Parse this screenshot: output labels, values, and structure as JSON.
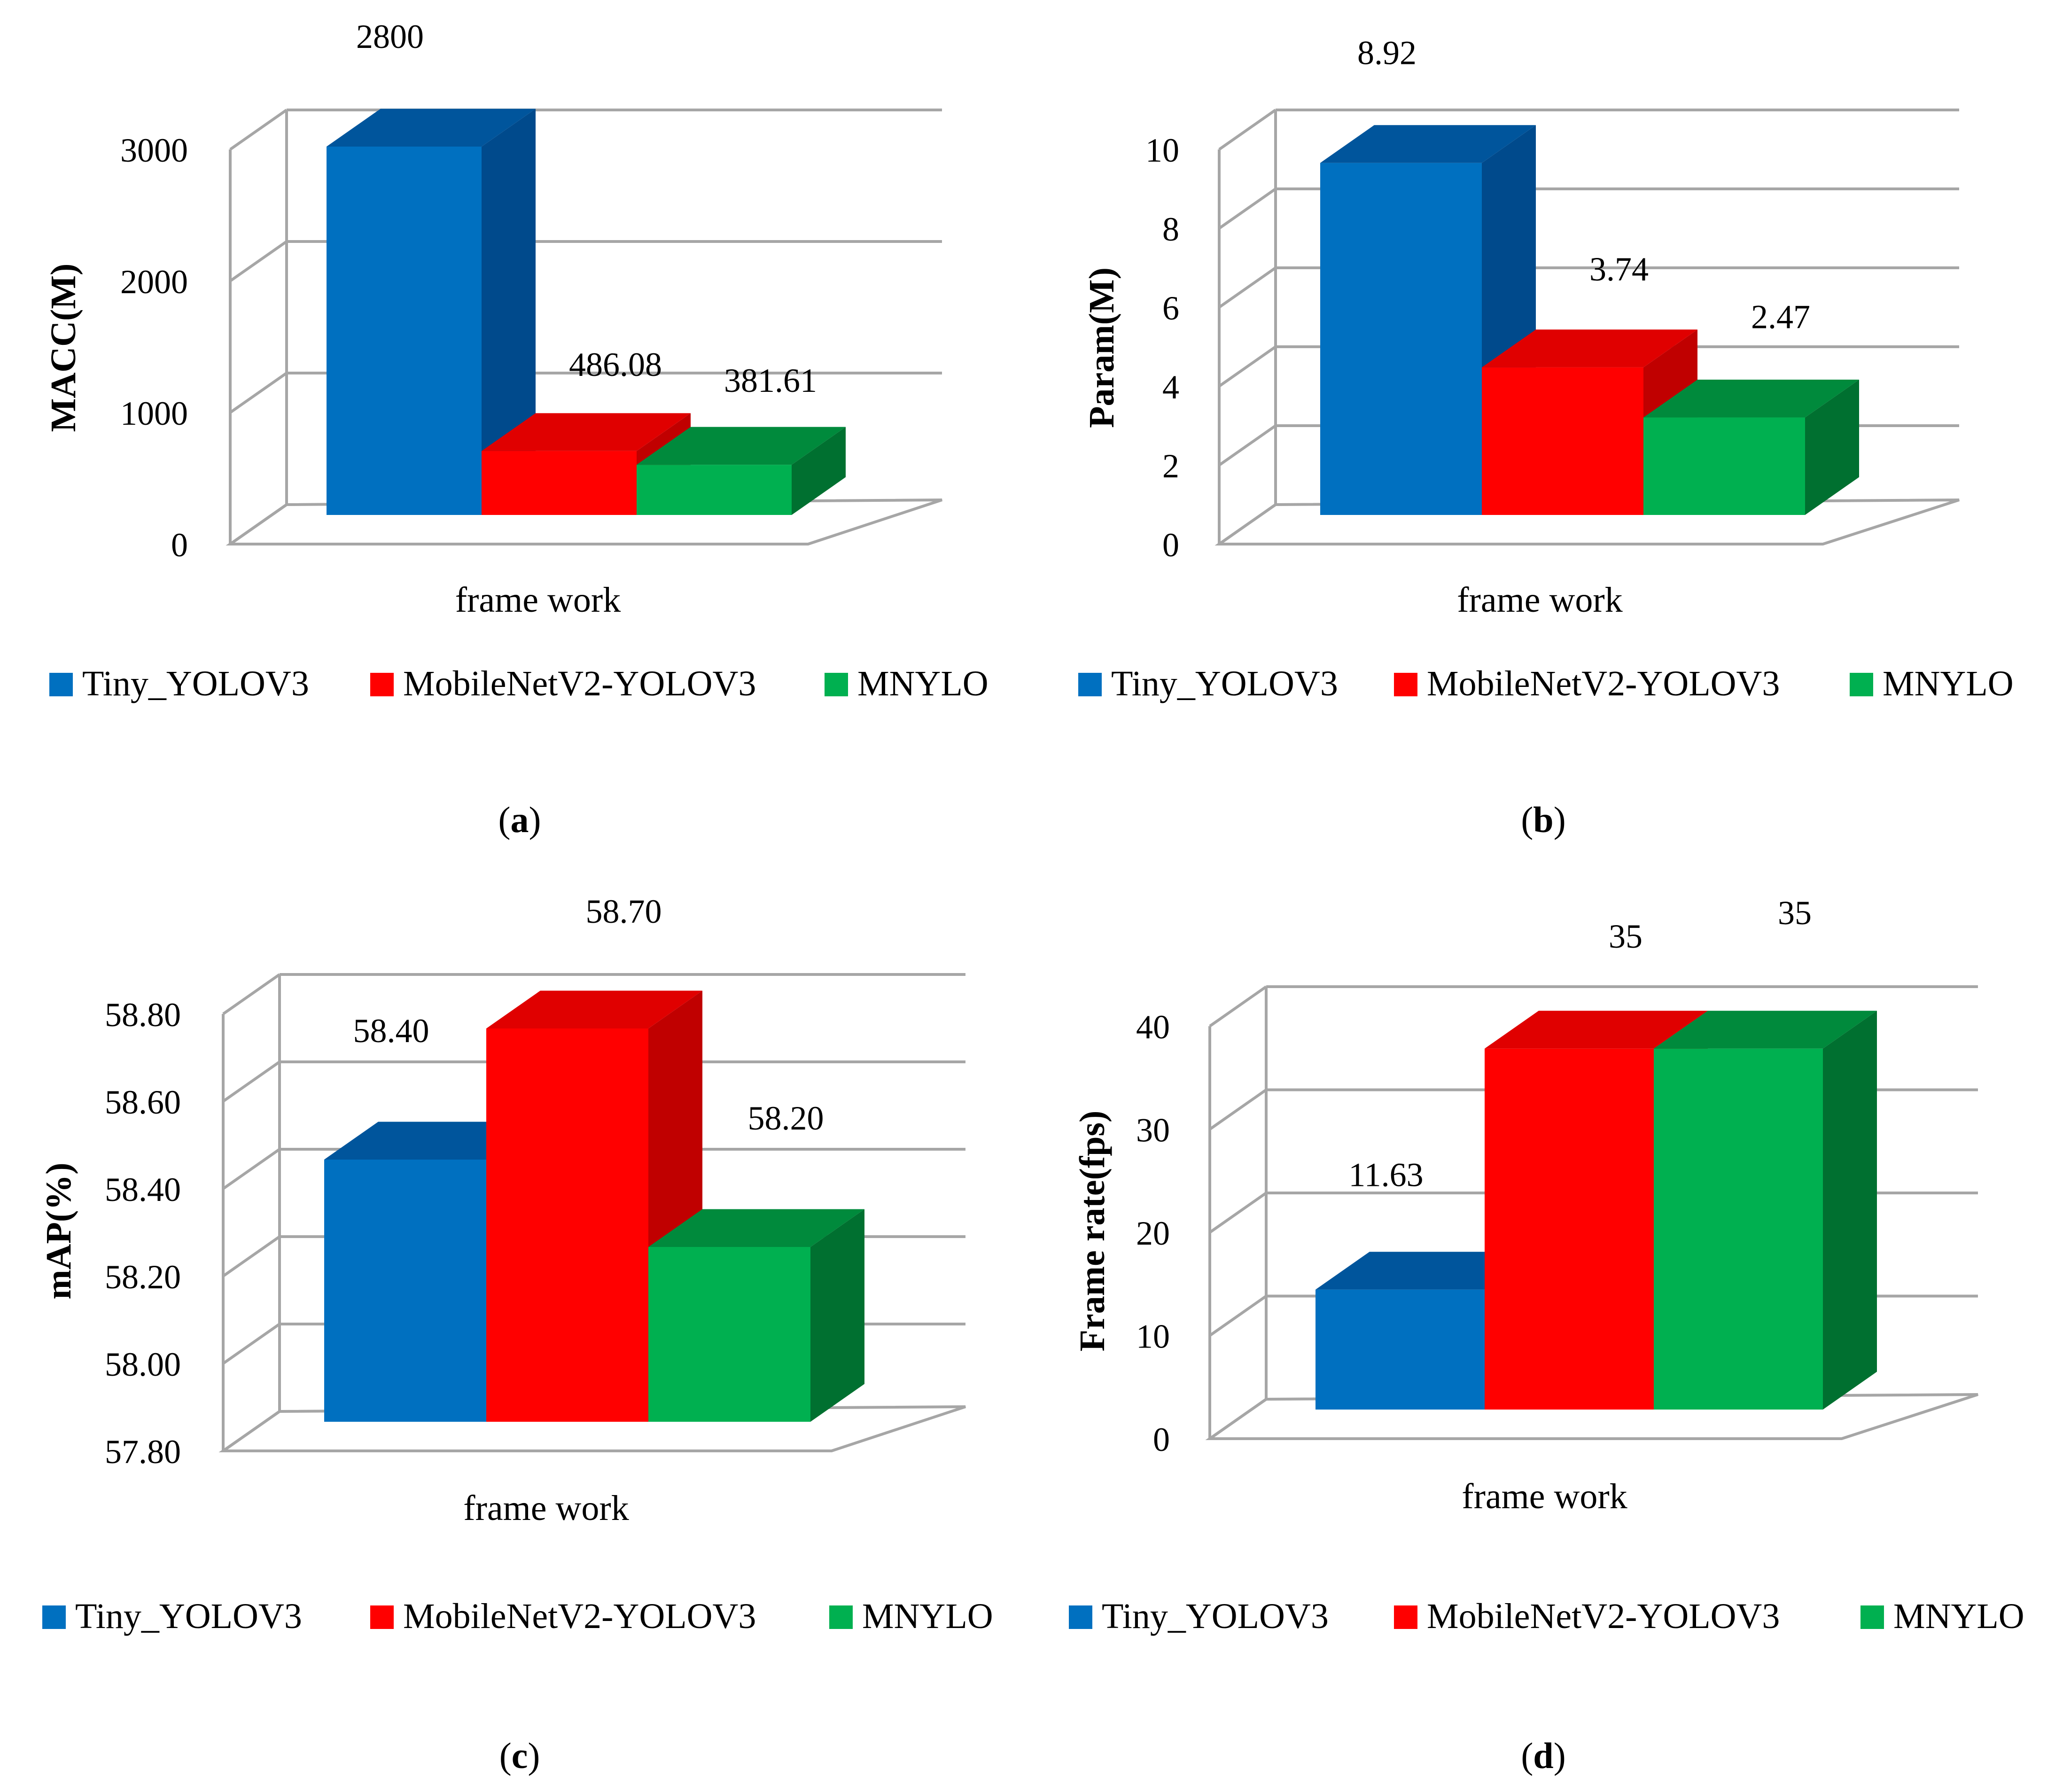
{
  "colors": {
    "series": [
      "#0070c0",
      "#ff0000",
      "#00b050"
    ],
    "series_top": [
      "#00559c",
      "#e00000",
      "#008a3c"
    ],
    "series_side": [
      "#004a8c",
      "#c00000",
      "#007030"
    ],
    "grid": "#a6a6a6",
    "text": "#000000"
  },
  "legend": [
    "Tiny_YOLOV3",
    "MobileNetV2-YOLOV3",
    "MNYLO"
  ],
  "captions": [
    "a",
    "b",
    "c",
    "d"
  ],
  "chart_data": [
    {
      "id": "a",
      "type": "bar",
      "ylabel": "MACC(M)",
      "xlabel": "frame work",
      "categories": [
        "frame work"
      ],
      "series": [
        {
          "name": "Tiny_YOLOV3",
          "values": [
            2800
          ],
          "label": "2800"
        },
        {
          "name": "MobileNetV2-YOLOV3",
          "values": [
            486.08
          ],
          "label": "486.08"
        },
        {
          "name": "MNYLO",
          "values": [
            381.61
          ],
          "label": "381.61"
        }
      ],
      "ylim": [
        0,
        3000
      ],
      "ticks": [
        0,
        1000,
        2000,
        3000
      ],
      "tick_labels": [
        "0",
        "1000",
        "2000",
        "3000"
      ],
      "grid": true,
      "legend_position": "bottom"
    },
    {
      "id": "b",
      "type": "bar",
      "ylabel": "Param(M)",
      "xlabel": "frame work",
      "categories": [
        "frame work"
      ],
      "series": [
        {
          "name": "Tiny_YOLOV3",
          "values": [
            8.92
          ],
          "label": "8.92"
        },
        {
          "name": "MobileNetV2-YOLOV3",
          "values": [
            3.74
          ],
          "label": "3.74"
        },
        {
          "name": "MNYLO",
          "values": [
            2.47
          ],
          "label": "2.47"
        }
      ],
      "ylim": [
        0,
        10
      ],
      "ticks": [
        0,
        2,
        4,
        6,
        8,
        10
      ],
      "tick_labels": [
        "0",
        "2",
        "4",
        "6",
        "8",
        "10"
      ],
      "grid": true,
      "legend_position": "bottom"
    },
    {
      "id": "c",
      "type": "bar",
      "ylabel": "mAP(%)",
      "xlabel": "frame work",
      "categories": [
        "frame work"
      ],
      "series": [
        {
          "name": "Tiny_YOLOV3",
          "values": [
            58.4
          ],
          "label": "58.40"
        },
        {
          "name": "MobileNetV2-YOLOV3",
          "values": [
            58.7
          ],
          "label": "58.70"
        },
        {
          "name": "MNYLO",
          "values": [
            58.2
          ],
          "label": "58.20"
        }
      ],
      "ylim": [
        57.8,
        58.8
      ],
      "ticks": [
        57.8,
        58.0,
        58.2,
        58.4,
        58.6,
        58.8
      ],
      "tick_labels": [
        "57.80",
        "58.00",
        "58.20",
        "58.40",
        "58.60",
        "58.80"
      ],
      "grid": true,
      "legend_position": "bottom"
    },
    {
      "id": "d",
      "type": "bar",
      "ylabel": "Frame rate(fps)",
      "xlabel": "frame work",
      "categories": [
        "frame work"
      ],
      "series": [
        {
          "name": "Tiny_YOLOV3",
          "values": [
            11.63
          ],
          "label": "11.63"
        },
        {
          "name": "MobileNetV2-YOLOV3",
          "values": [
            35
          ],
          "label": "35"
        },
        {
          "name": "MNYLO",
          "values": [
            35
          ],
          "label": "35"
        }
      ],
      "ylim": [
        0,
        40
      ],
      "ticks": [
        0,
        10,
        20,
        30,
        40
      ],
      "tick_labels": [
        "0",
        "10",
        "20",
        "30",
        "40"
      ],
      "grid": true,
      "legend_position": "bottom"
    }
  ]
}
